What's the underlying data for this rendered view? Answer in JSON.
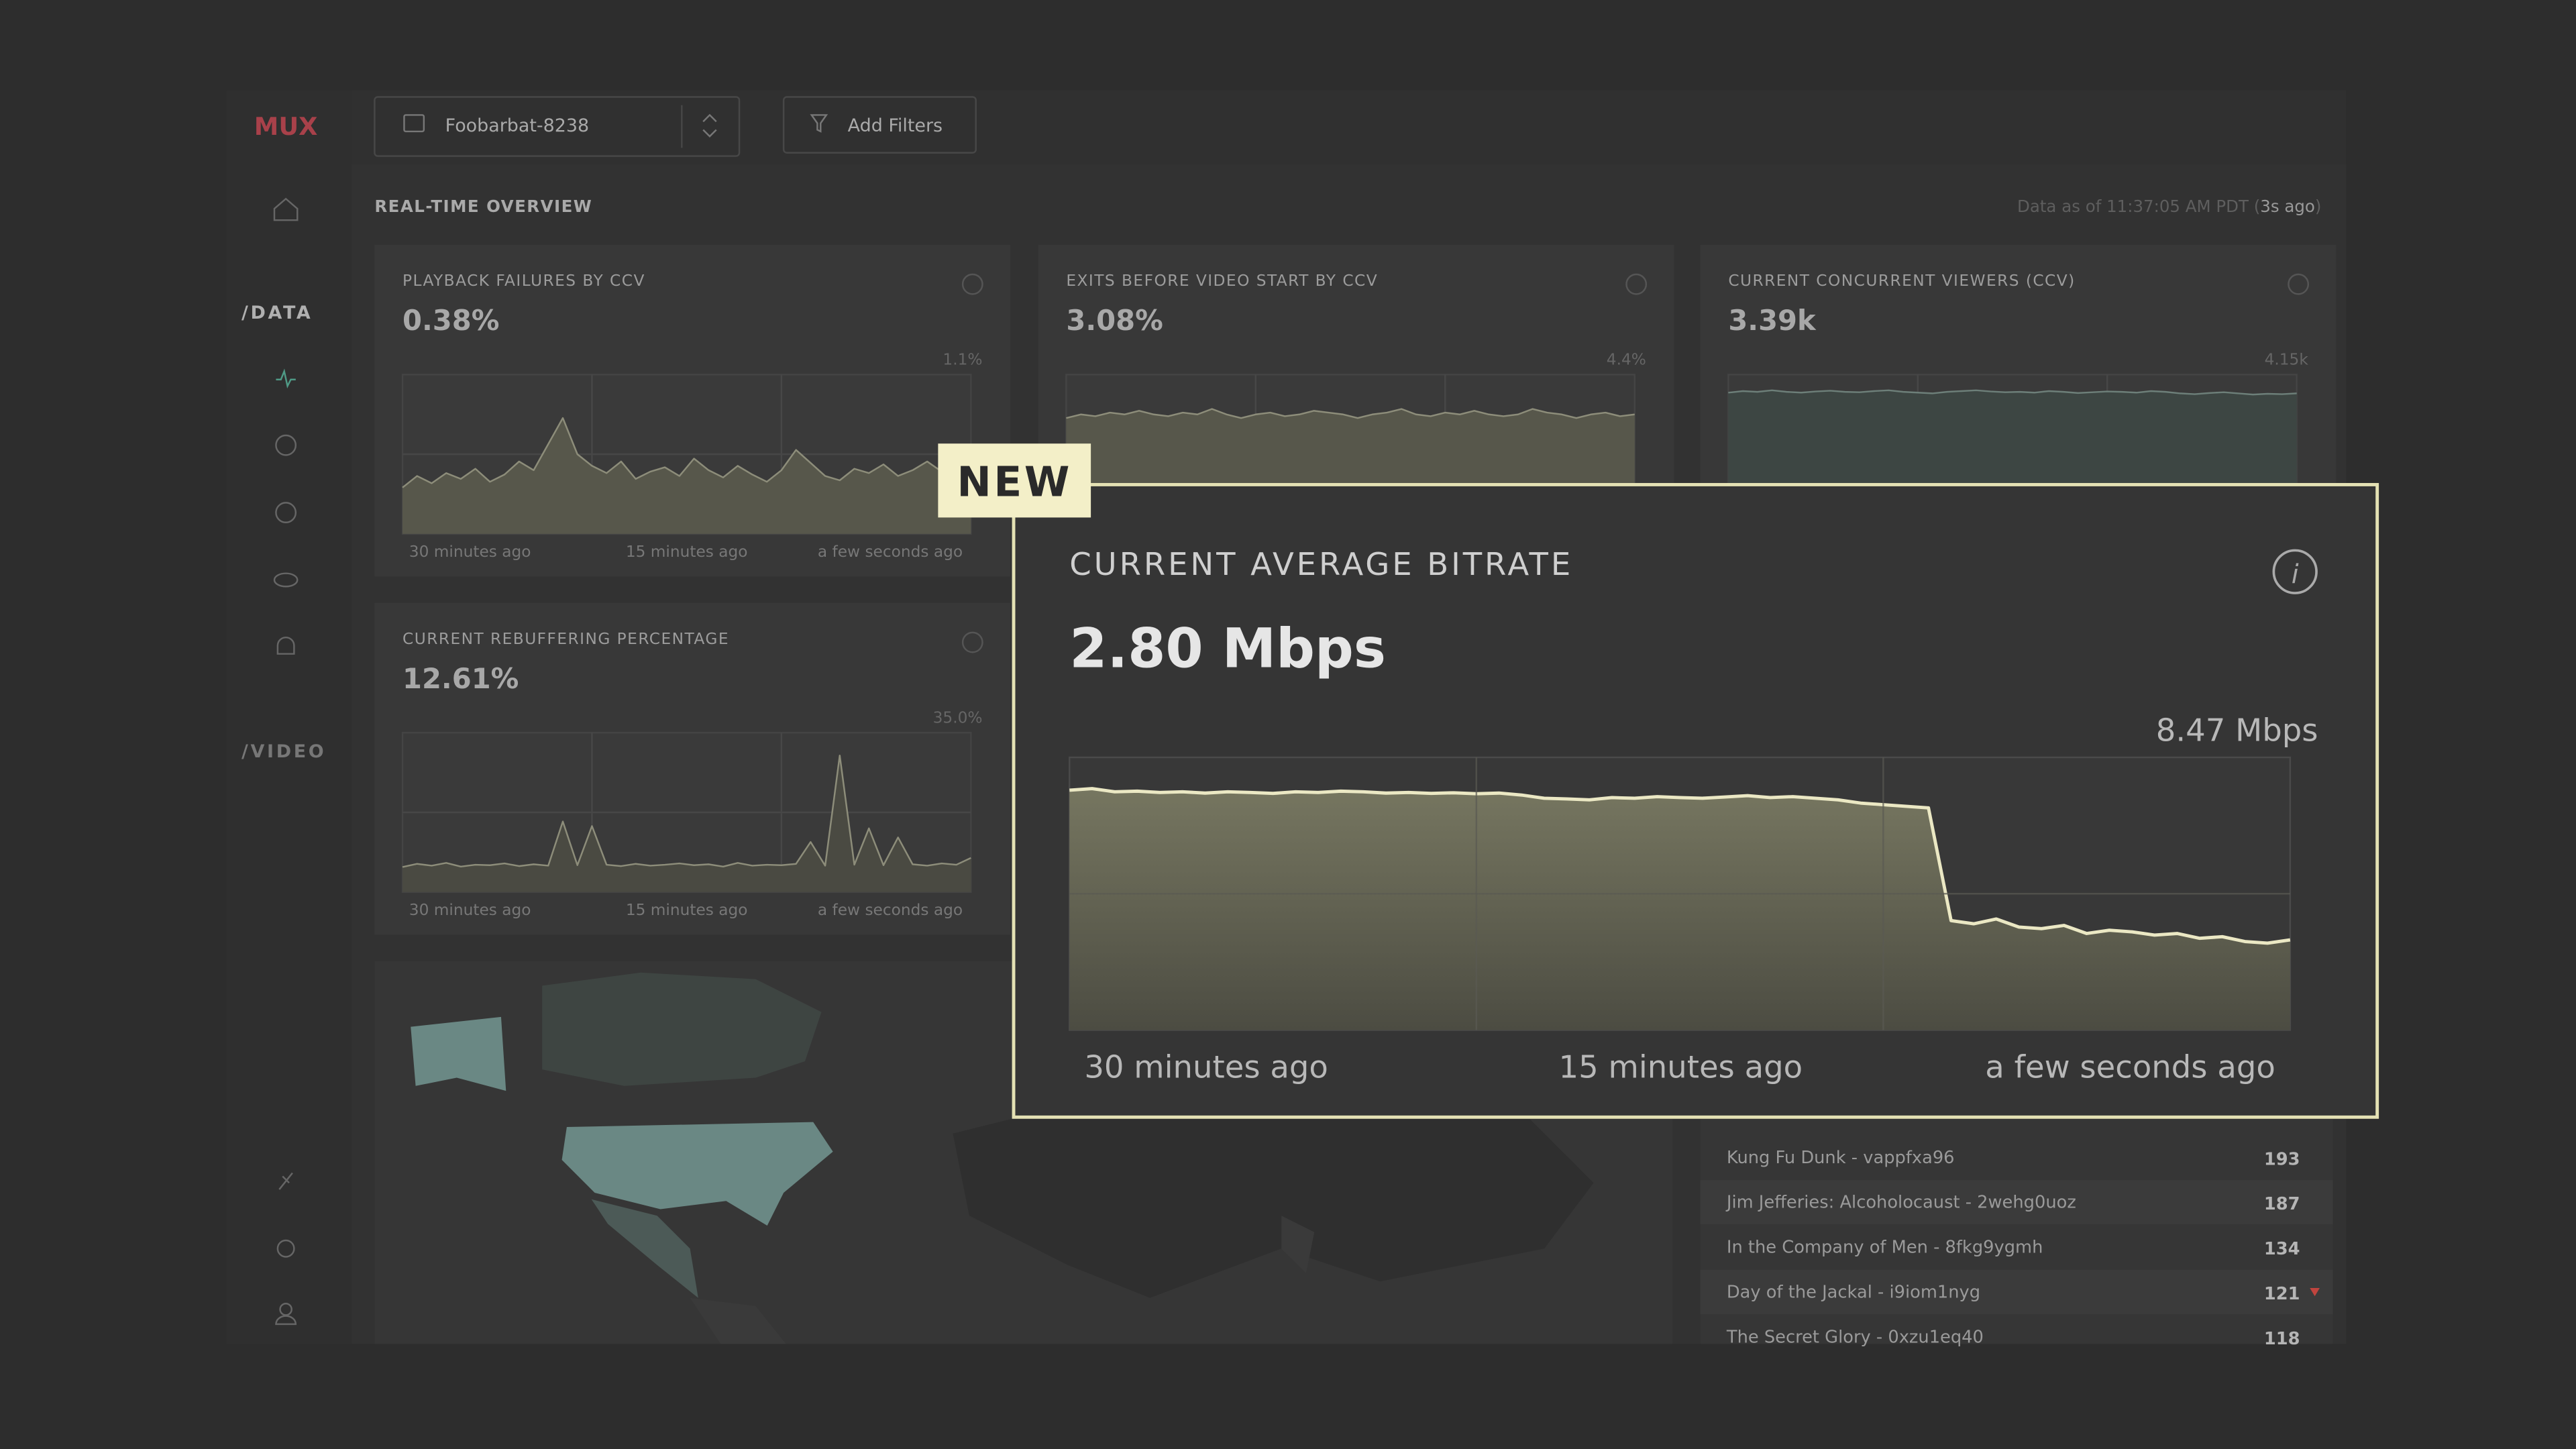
{
  "header": {
    "logo": "MUX",
    "project": "Foobarbat-8238",
    "filter_button": "Add Filters"
  },
  "sidebar": {
    "sections": [
      "/DATA",
      "/VIDEO"
    ]
  },
  "overview": {
    "title": "REAL-TIME OVERVIEW",
    "status_prefix": "Data as of 11:37:05 AM PDT (",
    "status_age": "3s ago",
    "status_suffix": ")"
  },
  "x_labels": [
    "30 minutes ago",
    "15 minutes ago",
    "a few seconds ago"
  ],
  "tiles": [
    {
      "title": "PLAYBACK FAILURES BY CCV",
      "value": "0.38%",
      "ymax": {
        "value": 1.1,
        "label": "1.1%"
      },
      "values": [
        0.32,
        0.4,
        0.35,
        0.42,
        0.38,
        0.45,
        0.36,
        0.41,
        0.5,
        0.44,
        0.62,
        0.8,
        0.55,
        0.47,
        0.42,
        0.5,
        0.38,
        0.43,
        0.46,
        0.4,
        0.52,
        0.44,
        0.39,
        0.47,
        0.41,
        0.36,
        0.44,
        0.58,
        0.49,
        0.4,
        0.37,
        0.45,
        0.42,
        0.48,
        0.4,
        0.44,
        0.5,
        0.43,
        0.55,
        0.47
      ]
    },
    {
      "title": "EXITS BEFORE VIDEO START BY CCV",
      "value": "3.08%",
      "ymax": {
        "value": 4.4,
        "label": "4.4%"
      },
      "values": [
        3.2,
        3.3,
        3.25,
        3.35,
        3.3,
        3.4,
        3.3,
        3.25,
        3.35,
        3.3,
        3.45,
        3.3,
        3.2,
        3.3,
        3.35,
        3.25,
        3.3,
        3.4,
        3.35,
        3.3,
        3.2,
        3.3,
        3.35,
        3.45,
        3.3,
        3.25,
        3.35,
        3.3,
        3.4,
        3.3,
        3.25,
        3.3,
        3.45,
        3.35,
        3.3,
        3.2,
        3.3,
        3.35,
        3.25,
        3.3
      ]
    },
    {
      "title": "CURRENT CONCURRENT VIEWERS (CCV)",
      "value": "3.39k",
      "ymax": {
        "value": 4.15,
        "label": "4.15k"
      },
      "values": [
        3.68,
        3.72,
        3.7,
        3.74,
        3.7,
        3.68,
        3.71,
        3.73,
        3.7,
        3.69,
        3.72,
        3.74,
        3.7,
        3.68,
        3.66,
        3.7,
        3.72,
        3.74,
        3.71,
        3.69,
        3.7,
        3.68,
        3.72,
        3.7,
        3.67,
        3.69,
        3.71,
        3.7,
        3.68,
        3.72,
        3.7,
        3.66,
        3.64,
        3.67,
        3.69,
        3.66,
        3.63,
        3.65,
        3.64,
        3.66
      ]
    },
    {
      "title": "CURRENT REBUFFERING PERCENTAGE",
      "value": "12.61%",
      "ymax": {
        "value": 35.0,
        "label": "35.0%"
      },
      "values": [
        5.5,
        6.2,
        5.8,
        6.4,
        5.6,
        6,
        5.9,
        6.3,
        5.7,
        6.1,
        5.8,
        15.5,
        5.9,
        14.5,
        6,
        5.7,
        6.2,
        5.8,
        6,
        6.3,
        5.9,
        6.1,
        5.6,
        6.4,
        5.8,
        6,
        5.9,
        6.2,
        11,
        5.8,
        30,
        6,
        14,
        5.9,
        12,
        6.1,
        5.8,
        6.3,
        6,
        7.5
      ]
    }
  ],
  "popup": {
    "badge": "NEW",
    "title": "CURRENT AVERAGE BITRATE",
    "value": "2.80 Mbps",
    "ymax": {
      "value": 8.47,
      "label": "8.47 Mbps"
    },
    "values": [
      7.45,
      7.5,
      7.4,
      7.42,
      7.38,
      7.4,
      7.36,
      7.4,
      7.38,
      7.35,
      7.4,
      7.38,
      7.42,
      7.4,
      7.36,
      7.38,
      7.35,
      7.37,
      7.34,
      7.36,
      7.3,
      7.2,
      7.18,
      7.15,
      7.22,
      7.2,
      7.25,
      7.22,
      7.2,
      7.24,
      7.28,
      7.22,
      7.25,
      7.2,
      7.15,
      7.05,
      7.0,
      6.95,
      6.9,
      3.4,
      3.3,
      3.45,
      3.2,
      3.15,
      3.25,
      3.0,
      3.1,
      3.05,
      2.95,
      3.0,
      2.85,
      2.9,
      2.75,
      2.7,
      2.8
    ]
  },
  "table": {
    "rows": [
      [
        "Kung Fu Dunk - vappfxa96",
        "193"
      ],
      [
        "Jim Jefferies: Alcoholocaust - 2wehg0uoz",
        "187"
      ],
      [
        "In the Company of Men - 8fkg9ygmh",
        "134"
      ],
      [
        "Day of the Jackal - i9iom1nyg",
        "121"
      ],
      [
        "The Secret Glory - 0xzu1eq40",
        "118"
      ]
    ]
  }
}
